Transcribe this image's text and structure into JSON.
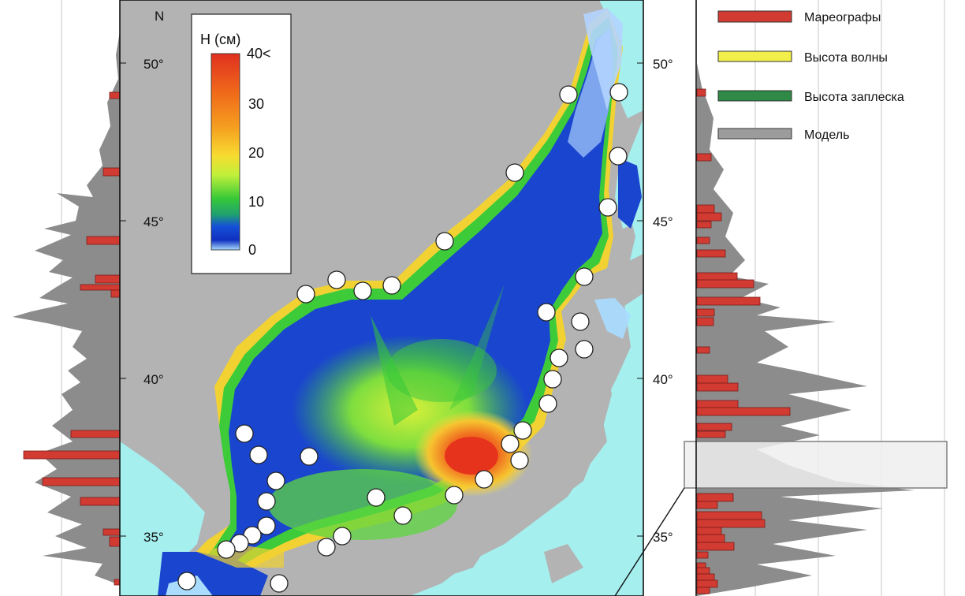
{
  "north_label": "N",
  "lat_ticks": [
    {
      "lat": 50,
      "label": "50°"
    },
    {
      "lat": 45,
      "label": "45°"
    },
    {
      "lat": 40,
      "label": "40°"
    },
    {
      "lat": 35,
      "label": "35°"
    }
  ],
  "colorbar": {
    "title": "H (см)",
    "ticks": [
      {
        "value": 40,
        "label": "40<"
      },
      {
        "value": 30,
        "label": "30"
      },
      {
        "value": 20,
        "label": "20"
      },
      {
        "value": 10,
        "label": "10"
      },
      {
        "value": 0,
        "label": "0"
      }
    ],
    "colors": [
      "#e03020",
      "#f06a1a",
      "#f5a020",
      "#f7dc30",
      "#e8f03a",
      "#8ee040",
      "#36c838",
      "#22a850",
      "#1550d8",
      "#1030c0",
      "#a9dcff"
    ]
  },
  "legend": [
    {
      "label": "Мареографы",
      "color": "#d23b32"
    },
    {
      "label": "Высота волны",
      "color": "#f2ef4b"
    },
    {
      "label": "Высота заплеска",
      "color": "#2e8a46"
    },
    {
      "label": "Модель",
      "color": "#9c9c9c"
    }
  ],
  "colors": {
    "land": "#b3b3b3",
    "ocean": "#a5efef",
    "sea_low": "#1a45cf",
    "tide_gauge": "#d23b32",
    "model": "#8a8a8a"
  }
}
